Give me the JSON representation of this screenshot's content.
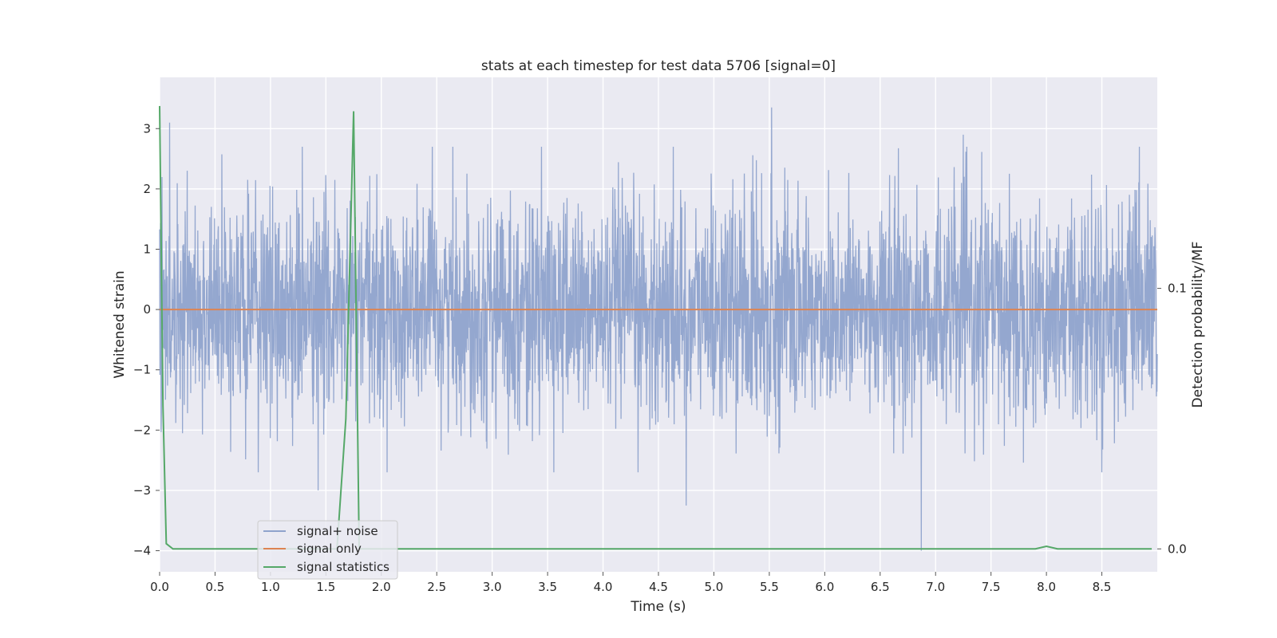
{
  "chart_data": {
    "type": "line",
    "title": "stats at each timestep for test data 5706 [signal=0]",
    "xlabel": "Time (s)",
    "ylabel": "Whitened strain",
    "y2label": "Detection probability/MF",
    "xlim": [
      0.0,
      9.0
    ],
    "ylim": [
      -4.35,
      3.85
    ],
    "y2lim": [
      -0.0088,
      0.181
    ],
    "x_ticks": [
      "0.0",
      "0.5",
      "1.0",
      "1.5",
      "2.0",
      "2.5",
      "3.0",
      "3.5",
      "4.0",
      "4.5",
      "5.0",
      "5.5",
      "6.0",
      "6.5",
      "7.0",
      "7.5",
      "8.0",
      "8.5"
    ],
    "y_ticks": [
      "3",
      "2",
      "1",
      "0",
      "−1",
      "−2",
      "−3",
      "−4"
    ],
    "y2_ticks": [
      "0.1",
      "0.0"
    ],
    "grid": true,
    "legend_position": "lower-left",
    "colors": {
      "signal_noise": "#8fa3cc",
      "signal_only": "#dd8452",
      "signal_statistics": "#55a868",
      "plot_bg": "#eaeaf2",
      "grid": "#ffffff"
    },
    "series": [
      {
        "name": "signal+ noise",
        "sampling": "approx. 2048 samples/s whitened noise, amplitude mostly within ±2, occasional excursions near ±3",
        "x_range": [
          0.0,
          9.0
        ],
        "peaks": [
          {
            "x": 0.09,
            "y": 3.1
          },
          {
            "x": 1.43,
            "y": -3.0
          },
          {
            "x": 4.75,
            "y": -3.25
          },
          {
            "x": 5.52,
            "y": 3.35
          },
          {
            "x": 6.87,
            "y": -4.0
          },
          {
            "x": 7.25,
            "y": 2.9
          }
        ]
      },
      {
        "name": "signal only",
        "x": [
          0.0,
          9.0
        ],
        "y": [
          0.0,
          0.0
        ]
      },
      {
        "name": "signal statistics",
        "axis": "right",
        "x": [
          0.0,
          0.03,
          0.06,
          0.12,
          1.6,
          1.68,
          1.75,
          1.8,
          7.9,
          8.0,
          8.1,
          8.95
        ],
        "y": [
          0.17,
          0.055,
          0.002,
          0.0,
          0.0,
          0.05,
          0.168,
          0.0,
          0.0,
          0.001,
          0.0,
          0.0
        ]
      }
    ]
  }
}
